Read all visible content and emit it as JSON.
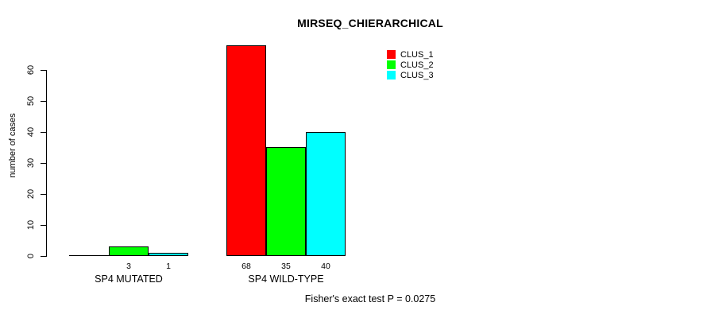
{
  "title": "MIRSEQ_CHIERARCHICAL",
  "footer": "Fisher's exact test P = 0.0275",
  "chart_data": {
    "type": "bar",
    "title": "MIRSEQ_CHIERARCHICAL",
    "xlabel": "",
    "ylabel": "number of cases",
    "ylim": [
      0,
      68
    ],
    "yticks": [
      0,
      10,
      20,
      30,
      40,
      50,
      60
    ],
    "grid": false,
    "legend_position": "top-right",
    "categories": [
      "SP4 MUTATED",
      "SP4 WILD-TYPE"
    ],
    "legend": [
      "CLUS_1",
      "CLUS_2",
      "CLUS_3"
    ],
    "series_colors": [
      "#ff0000",
      "#00ff00",
      "#00ffff"
    ],
    "bar_border_color": "#000000",
    "series": [
      {
        "name": "CLUS_1",
        "values": [
          0,
          68
        ]
      },
      {
        "name": "CLUS_2",
        "values": [
          3,
          35
        ]
      },
      {
        "name": "CLUS_3",
        "values": [
          1,
          40
        ]
      }
    ],
    "bar_value_labels": [
      [
        "",
        "3",
        "1"
      ],
      [
        "68",
        "35",
        "40"
      ]
    ],
    "annotation": "Fisher's exact test P = 0.0275"
  }
}
